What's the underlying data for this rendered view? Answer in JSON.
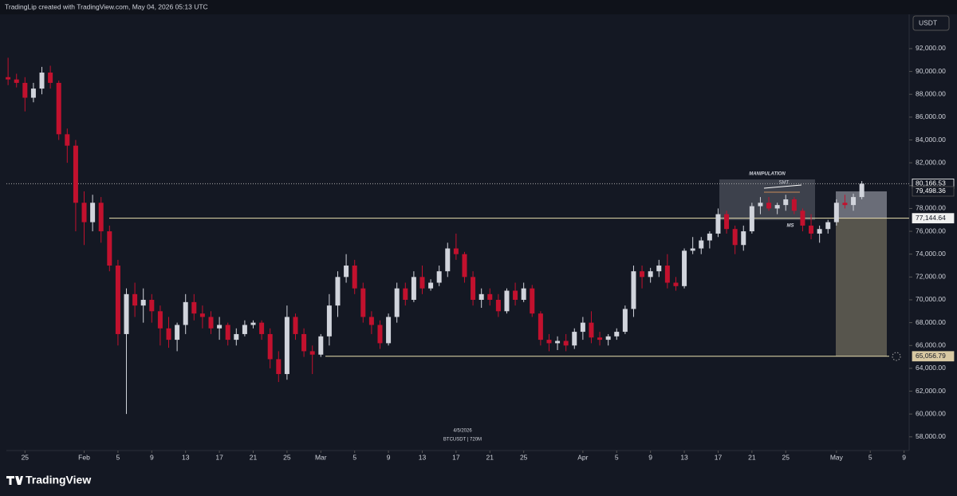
{
  "header": {
    "attribution": "TradingLip created with TradingView.com, May 04, 2026 05:13 UTC"
  },
  "footer": {
    "brand": "TradingView"
  },
  "chart_data": {
    "type": "candlestick",
    "currency": "USDT",
    "date_label": "4/5/2026",
    "symbol_label": "BTCUSDT | 720M",
    "up_color": "#d1d4dc",
    "down_color": "#c2112e",
    "open": [
      89500,
      89300,
      89000,
      87700,
      88500,
      89900,
      89000,
      84500,
      83500,
      78500,
      76800,
      78500,
      76000,
      73000,
      67000,
      70500,
      69500,
      70000,
      69000,
      67500,
      66500,
      67800,
      69800,
      68800,
      68500,
      67500,
      67800,
      66500,
      67000,
      67800,
      68000,
      67000,
      64800,
      63500,
      68500,
      67000,
      65500,
      65200,
      66800,
      69500,
      72000,
      73000,
      71000,
      68500,
      67800,
      66200,
      68500,
      71000,
      70000,
      72000,
      71000,
      71500,
      72500,
      74500,
      74000,
      72000,
      70000,
      70500,
      70000,
      69000,
      70800,
      70000,
      71000,
      68800,
      66500,
      66200,
      66400,
      66000,
      67200,
      68000,
      66700,
      66500,
      66800,
      67200,
      69200,
      72500,
      72000,
      72500,
      73000,
      71500,
      71200,
      74300,
      74500,
      75200,
      75800,
      77500,
      76200,
      74800,
      76000,
      78200,
      78500,
      78000,
      78300,
      78800,
      77800,
      76500,
      75800,
      76200,
      76800,
      78500,
      78300,
      79000
    ],
    "high": [
      91200,
      89800,
      89500,
      89000,
      90400,
      90500,
      89200,
      85000,
      84000,
      79500,
      79200,
      79000,
      76500,
      73500,
      71000,
      71500,
      71000,
      70500,
      69500,
      68500,
      68000,
      70500,
      70500,
      69500,
      69000,
      68500,
      68000,
      67500,
      68200,
      68200,
      68200,
      67500,
      65500,
      69500,
      68800,
      67500,
      66000,
      67000,
      70500,
      72500,
      74000,
      73500,
      71500,
      69000,
      68200,
      68800,
      71500,
      71500,
      72500,
      73000,
      71800,
      73000,
      75000,
      75800,
      74200,
      72500,
      71000,
      71000,
      70500,
      71000,
      71500,
      71500,
      71300,
      69000,
      67000,
      66800,
      67000,
      67500,
      68500,
      69000,
      67200,
      67000,
      67500,
      69500,
      73000,
      73000,
      72800,
      73500,
      74000,
      72000,
      74500,
      75500,
      75500,
      76000,
      78000,
      77800,
      76500,
      76500,
      78500,
      79000,
      79000,
      78500,
      79200,
      79000,
      78000,
      77500,
      76500,
      77000,
      78800,
      79200,
      79300,
      80400
    ],
    "low": [
      88800,
      88600,
      86500,
      87300,
      88000,
      88500,
      84000,
      82000,
      76000,
      74800,
      76000,
      75000,
      72500,
      66000,
      60000,
      68500,
      68000,
      68000,
      66000,
      65800,
      65500,
      67000,
      68200,
      67500,
      67000,
      66500,
      66000,
      66000,
      66800,
      67500,
      66500,
      64000,
      62800,
      63000,
      66500,
      65000,
      63500,
      65000,
      66000,
      68500,
      71500,
      70500,
      68000,
      67000,
      65700,
      66000,
      68000,
      69500,
      69800,
      70500,
      70800,
      71200,
      72000,
      73500,
      71500,
      69500,
      69300,
      69500,
      68500,
      68800,
      69500,
      69800,
      68500,
      66000,
      65500,
      65600,
      65500,
      65700,
      66500,
      66200,
      66000,
      66000,
      66500,
      67000,
      68500,
      71000,
      71500,
      72000,
      71000,
      70800,
      71000,
      74000,
      74000,
      74500,
      75500,
      75800,
      74000,
      74300,
      75800,
      77500,
      77800,
      77500,
      77800,
      77500,
      76000,
      75300,
      75000,
      75800,
      76500,
      78000,
      77800,
      78800
    ],
    "close": [
      89300,
      89000,
      87700,
      88500,
      89900,
      89000,
      84500,
      83500,
      78500,
      76800,
      78500,
      76000,
      73000,
      67000,
      70500,
      69500,
      70000,
      69000,
      67500,
      66500,
      67800,
      69800,
      68800,
      68500,
      67500,
      67800,
      66500,
      67000,
      67800,
      68000,
      67000,
      64800,
      63500,
      68500,
      67000,
      65500,
      65200,
      66800,
      69500,
      72000,
      73000,
      71000,
      68500,
      67800,
      66200,
      68500,
      71000,
      70000,
      72000,
      71000,
      71500,
      72500,
      74500,
      74000,
      72000,
      70000,
      70500,
      70000,
      69000,
      70800,
      70000,
      71000,
      68800,
      66500,
      66200,
      66400,
      66000,
      67200,
      68000,
      66700,
      66500,
      66800,
      67200,
      69200,
      72500,
      72000,
      72500,
      73000,
      71500,
      71200,
      74300,
      74500,
      75200,
      75800,
      77500,
      76200,
      74800,
      76000,
      78200,
      78500,
      78000,
      78300,
      78800,
      77800,
      76500,
      75800,
      76200,
      76800,
      78500,
      78300,
      79000,
      80166.53
    ],
    "xlim": [
      -0.2,
      106.6
    ],
    "xticks": [
      {
        "value": 2,
        "label": "25"
      },
      {
        "value": 9,
        "label": "Feb"
      },
      {
        "value": 13,
        "label": "5"
      },
      {
        "value": 17,
        "label": "9"
      },
      {
        "value": 21,
        "label": "13"
      },
      {
        "value": 25,
        "label": "17"
      },
      {
        "value": 29,
        "label": "21"
      },
      {
        "value": 33,
        "label": "25"
      },
      {
        "value": 37,
        "label": "Mar"
      },
      {
        "value": 41,
        "label": "5"
      },
      {
        "value": 45,
        "label": "9"
      },
      {
        "value": 49,
        "label": "13"
      },
      {
        "value": 53,
        "label": "17"
      },
      {
        "value": 57,
        "label": "21"
      },
      {
        "value": 61,
        "label": "25"
      },
      {
        "value": 68,
        "label": "Apr"
      },
      {
        "value": 72,
        "label": "5"
      },
      {
        "value": 76,
        "label": "9"
      },
      {
        "value": 80,
        "label": "13"
      },
      {
        "value": 84,
        "label": "17"
      },
      {
        "value": 88,
        "label": "21"
      },
      {
        "value": 92,
        "label": "25"
      },
      {
        "value": 98,
        "label": "May"
      },
      {
        "value": 102,
        "label": "5"
      },
      {
        "value": 106,
        "label": "9"
      }
    ],
    "ylim": [
      56800,
      95000
    ],
    "yticks": [
      {
        "value": 58000,
        "label": "58,000.00"
      },
      {
        "value": 60000,
        "label": "60,000.00"
      },
      {
        "value": 62000,
        "label": "62,000.00"
      },
      {
        "value": 64000,
        "label": "64,000.00"
      },
      {
        "value": 66000,
        "label": "66,000.00"
      },
      {
        "value": 68000,
        "label": "68,000.00"
      },
      {
        "value": 70000,
        "label": "70,000.00"
      },
      {
        "value": 72000,
        "label": "72,000.00"
      },
      {
        "value": 74000,
        "label": "74,000.00"
      },
      {
        "value": 76000,
        "label": "76,000.00"
      },
      {
        "value": 78000,
        "label": "78,000.00"
      },
      {
        "value": 80000,
        "label": "80,000.00"
      },
      {
        "value": 82000,
        "label": "82,000.00"
      },
      {
        "value": 84000,
        "label": "84,000.00"
      },
      {
        "value": 86000,
        "label": "86,000.00"
      },
      {
        "value": 88000,
        "label": "88,000.00"
      },
      {
        "value": 90000,
        "label": "90,000.00"
      },
      {
        "value": 92000,
        "label": "92,000.00"
      }
    ],
    "price_lines": [
      {
        "value": 80166.53,
        "label": "80,166.53"
      },
      {
        "value": 79498.36,
        "label": "79,498.36"
      },
      {
        "value": 77144.64,
        "label": "77,144.64"
      },
      {
        "value": 65056.79,
        "label": "65,056.79"
      }
    ],
    "annotations": [
      "MANIPULATION",
      "SMT",
      "MS"
    ]
  }
}
